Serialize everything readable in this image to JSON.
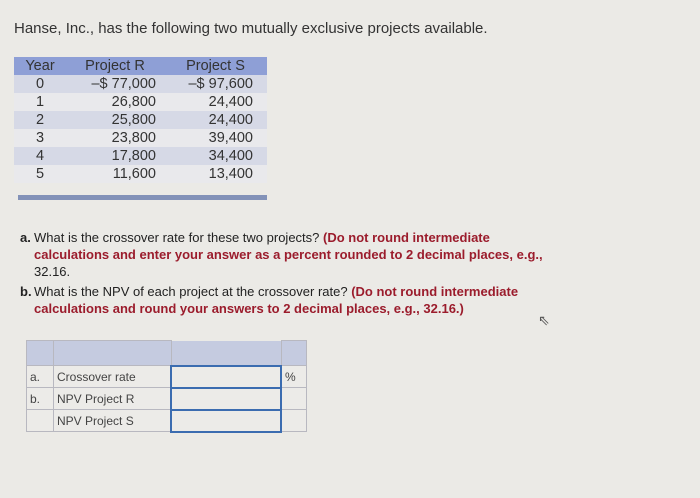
{
  "intro": "Hanse, Inc., has the following two mutually exclusive projects available.",
  "cashflows": {
    "headers": [
      "Year",
      "Project R",
      "Project S"
    ],
    "rows": [
      [
        "0",
        "–$ 77,000",
        "–$ 97,600"
      ],
      [
        "1",
        "26,800",
        "24,400"
      ],
      [
        "2",
        "25,800",
        "24,400"
      ],
      [
        "3",
        "23,800",
        "39,400"
      ],
      [
        "4",
        "17,800",
        "34,400"
      ],
      [
        "5",
        "11,600",
        "13,400"
      ]
    ]
  },
  "questions": {
    "a": {
      "label": "a.",
      "text": "What is the crossover rate for these two projects?",
      "instr_1": "(Do not round intermediate",
      "instr_2": "calculations and enter your answer as a percent rounded to 2 decimal places, e.g.,",
      "instr_3": "32.16."
    },
    "b": {
      "label": "b.",
      "text": "What is the NPV of each project at the crossover rate?",
      "instr_1": "(Do not round intermediate",
      "instr_2": "calculations and round your answers to 2 decimal places, e.g., 32.16.)"
    }
  },
  "answers": {
    "rows": [
      {
        "part": "a.",
        "label": "Crossover rate",
        "value": "",
        "unit": "%"
      },
      {
        "part": "b.",
        "label": "NPV Project R",
        "value": "",
        "unit": ""
      },
      {
        "part": "",
        "label": "NPV Project S",
        "value": "",
        "unit": ""
      }
    ]
  }
}
